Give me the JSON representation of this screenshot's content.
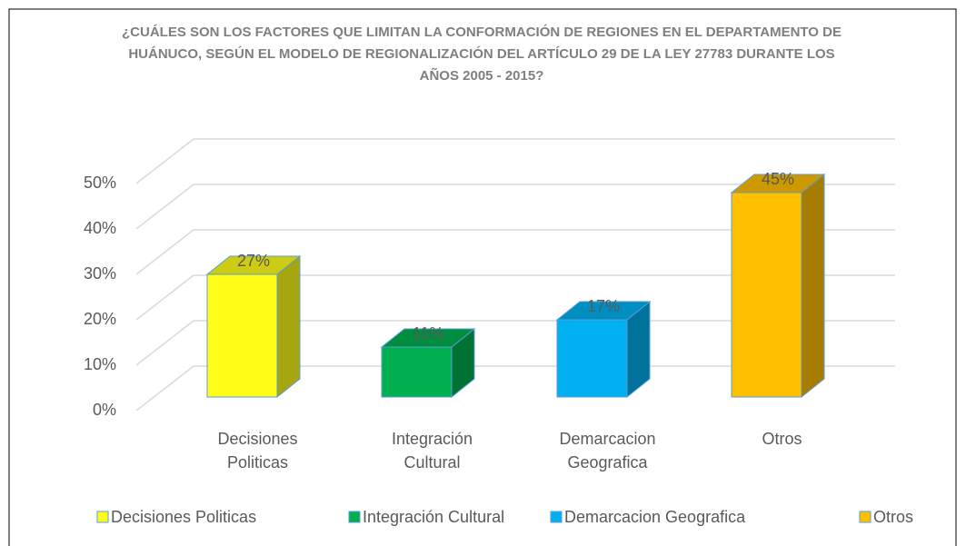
{
  "chart_data": {
    "type": "bar3d",
    "title": "¿CUÁLES SON LOS FACTORES QUE LIMITAN LA CONFORMACIÓN DE REGIONES EN EL DEPARTAMENTO DE HUÁNUCO, SEGÚN EL MODELO DE REGIONALIZACIÓN DEL ARTÍCULO 29 DE LA LEY 27783 DURANTE LOS AÑOS 2005 - 2015?",
    "categories": [
      "Decisiones Politicas",
      "Integración Cultural",
      "Demarcacion Geografica",
      "Otros"
    ],
    "values": [
      27,
      11,
      17,
      45
    ],
    "value_labels": [
      "27%",
      "11%",
      "17%",
      "45%"
    ],
    "colors": [
      "#ffff1a",
      "#00b050",
      "#00b0f0",
      "#ffc000"
    ],
    "ylim": [
      0,
      50
    ],
    "yticks": [
      {
        "value": 0,
        "label": "0%"
      },
      {
        "value": 10,
        "label": "10%"
      },
      {
        "value": 20,
        "label": "20%"
      },
      {
        "value": 30,
        "label": "30%"
      },
      {
        "value": 40,
        "label": "40%"
      },
      {
        "value": 50,
        "label": "50%"
      }
    ],
    "grid": true,
    "legend": "bottom"
  }
}
